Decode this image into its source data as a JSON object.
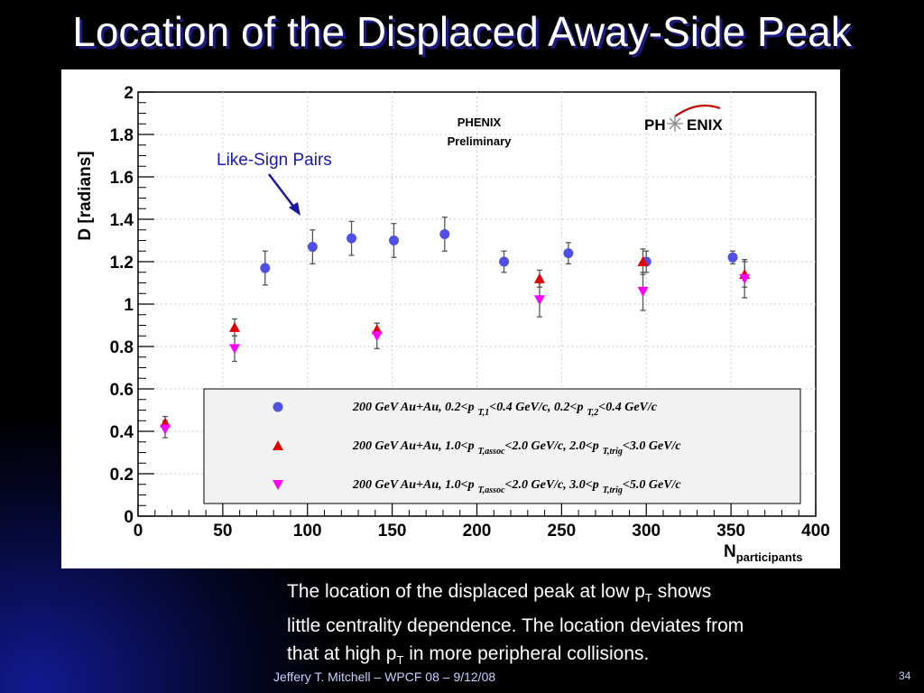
{
  "slide": {
    "title": "Location of the Displaced Away-Side Peak",
    "caption": {
      "line1_pre": "The location of the displaced peak at low p",
      "line1_sub": "T",
      "line1_post": " shows",
      "line2": "little centrality dependence. The location deviates from",
      "line3_pre": "that at high p",
      "line3_sub": "T",
      "line3_post": " in more peripheral collisions."
    },
    "footer": "Jeffery T. Mitchell – WPCF 08 – 9/12/08",
    "page_number": "34",
    "colors": {
      "background": "#000000",
      "glow": "#1a23b4",
      "title_shadow": "#1a1a80"
    }
  },
  "chart_data": {
    "type": "scatter",
    "xlabel": "N",
    "xlabel_sub": "participants",
    "ylabel": "D [radians]",
    "xlim": [
      0,
      400
    ],
    "ylim": [
      0,
      2
    ],
    "xticks": [
      "0",
      "50",
      "100",
      "150",
      "200",
      "250",
      "300",
      "350",
      "400"
    ],
    "yticks": [
      "0",
      "0.2",
      "0.4",
      "0.6",
      "0.8",
      "1",
      "1.2",
      "1.4",
      "1.6",
      "1.8",
      "2"
    ],
    "watermark": {
      "line1": "PHENIX",
      "line2": "Preliminary"
    },
    "logo": {
      "left": "PH",
      "right": "ENIX"
    },
    "annotation": "Like-Sign Pairs",
    "series": [
      {
        "marker": "circle",
        "color": "#5050e6",
        "legend": {
          "p1": "200 GeV Au+Au, 0.2<p",
          "s1": "T,1",
          "p2": "<0.4 GeV/c, 0.2<p",
          "s2": "T,2",
          "p3": "<0.4 GeV/c"
        },
        "points": [
          {
            "x": 75,
            "y": 1.17,
            "err": 0.08
          },
          {
            "x": 103,
            "y": 1.27,
            "err": 0.08
          },
          {
            "x": 126,
            "y": 1.31,
            "err": 0.08
          },
          {
            "x": 151,
            "y": 1.3,
            "err": 0.08
          },
          {
            "x": 181,
            "y": 1.33,
            "err": 0.08
          },
          {
            "x": 216,
            "y": 1.2,
            "err": 0.05
          },
          {
            "x": 254,
            "y": 1.24,
            "err": 0.05
          },
          {
            "x": 300,
            "y": 1.2,
            "err": 0.05
          },
          {
            "x": 351,
            "y": 1.22,
            "err": 0.03
          }
        ]
      },
      {
        "marker": "triangle-up",
        "color": "#e00000",
        "legend": {
          "p1": "200 GeV Au+Au, 1.0<p",
          "s1": "T,assoc",
          "p2": "<2.0 GeV/c, 2.0<p",
          "s2": "T,trig",
          "p3": "<3.0 GeV/c"
        },
        "points": [
          {
            "x": 16,
            "y": 0.44,
            "err": 0.03
          },
          {
            "x": 57,
            "y": 0.89,
            "err": 0.04
          },
          {
            "x": 141,
            "y": 0.88,
            "err": 0.03
          },
          {
            "x": 237,
            "y": 1.12,
            "err": 0.04
          },
          {
            "x": 298,
            "y": 1.2,
            "err": 0.06
          },
          {
            "x": 358,
            "y": 1.14,
            "err": 0.06
          }
        ]
      },
      {
        "marker": "triangle-down",
        "color": "#ff00ff",
        "legend": {
          "p1": "200 GeV Au+Au, 1.0<p",
          "s1": "T,assoc",
          "p2": "<2.0 GeV/c, 3.0<p",
          "s2": "T,trig",
          "p3": "<5.0 GeV/c"
        },
        "points": [
          {
            "x": 16,
            "y": 0.41,
            "err": 0.04
          },
          {
            "x": 57,
            "y": 0.79,
            "err": 0.06
          },
          {
            "x": 141,
            "y": 0.85,
            "err": 0.06
          },
          {
            "x": 237,
            "y": 1.02,
            "err": 0.08
          },
          {
            "x": 298,
            "y": 1.06,
            "err": 0.09
          },
          {
            "x": 358,
            "y": 1.12,
            "err": 0.09
          }
        ]
      }
    ]
  }
}
